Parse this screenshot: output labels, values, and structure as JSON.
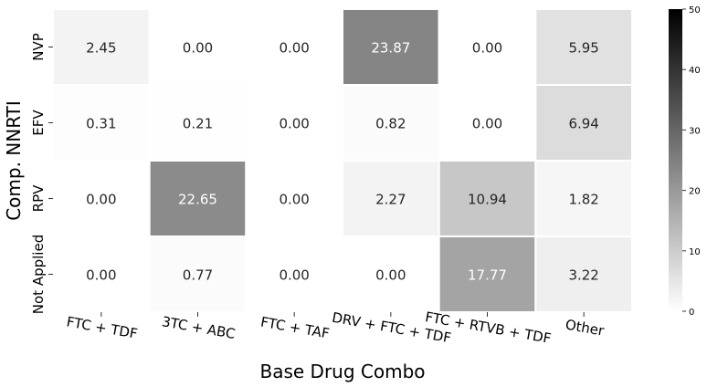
{
  "chart_data": {
    "type": "heatmap",
    "xlabel": "Base Drug Combo",
    "ylabel": "Comp. NNRTI",
    "x_categories": [
      "FTC + TDF",
      "3TC + ABC",
      "FTC + TAF",
      "DRV + FTC + TDF",
      "FTC + RTVB + TDF",
      "Other"
    ],
    "y_categories": [
      "NVP",
      "EFV",
      "RPV",
      "Not Applied"
    ],
    "values": [
      [
        2.45,
        0.0,
        0.0,
        23.87,
        0.0,
        5.95
      ],
      [
        0.31,
        0.21,
        0.0,
        0.82,
        0.0,
        6.94
      ],
      [
        0.0,
        22.65,
        0.0,
        2.27,
        10.94,
        1.82
      ],
      [
        0.0,
        0.77,
        0.0,
        0.0,
        17.77,
        3.22
      ]
    ],
    "value_labels": [
      [
        "2.45",
        "0.00",
        "0.00",
        "23.87",
        "0.00",
        "5.95"
      ],
      [
        "0.31",
        "0.21",
        "0.00",
        "0.82",
        "0.00",
        "6.94"
      ],
      [
        "0.00",
        "22.65",
        "0.00",
        "2.27",
        "10.94",
        "1.82"
      ],
      [
        "0.00",
        "0.77",
        "0.00",
        "0.00",
        "17.77",
        "3.22"
      ]
    ],
    "colorbar": {
      "range": [
        0,
        50
      ],
      "ticks": [
        "0",
        "10",
        "20",
        "30",
        "40",
        "50"
      ],
      "colormap": "Greys",
      "low_color": "#ffffff",
      "high_color": "#000000"
    },
    "cell_separator_color": "#ffffff",
    "x_tick_rotation_deg": 10
  }
}
